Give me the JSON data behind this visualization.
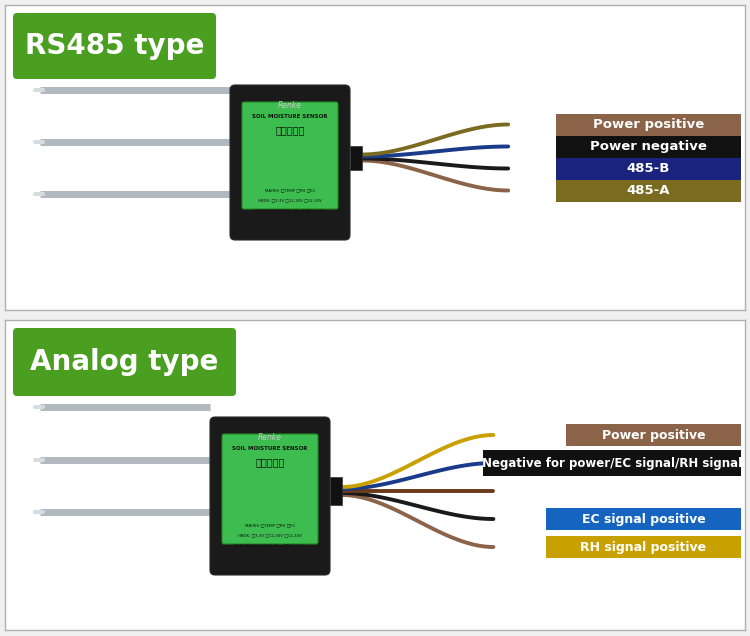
{
  "bg_color": "#f0f0f0",
  "panel_bg": "#ffffff",
  "border_color": "#b0b0b0",
  "green_badge_color": "#4a9e20",
  "section1_title": "RS485 type",
  "section2_title": "Analog type",
  "rs485_labels": [
    {
      "text": "Power positive",
      "bg": "#8B6348",
      "fg": "#ffffff"
    },
    {
      "text": "Power negative",
      "bg": "#111111",
      "fg": "#ffffff"
    },
    {
      "text": "485-B",
      "bg": "#1a237e",
      "fg": "#ffffff"
    },
    {
      "text": "485-A",
      "bg": "#7a6b20",
      "fg": "#ffffff"
    }
  ],
  "analog_labels": [
    {
      "text": "Power positive",
      "bg": "#8B6348",
      "fg": "#ffffff"
    },
    {
      "text": "Negative for power/EC signal/RH signal",
      "bg": "#111111",
      "fg": "#ffffff"
    },
    {
      "text": "EC signal positive",
      "bg": "#1565c0",
      "fg": "#ffffff"
    },
    {
      "text": "RH signal positive",
      "bg": "#c8a000",
      "fg": "#ffffff"
    }
  ],
  "wire_colors_rs485": [
    "#8B6348",
    "#1a1a1a",
    "#1a3a8a",
    "#7a6b20"
  ],
  "wire_colors_analog": [
    "#8B6348",
    "#1a1a1a",
    "#6b3a1a",
    "#1a3a8a",
    "#c8a000"
  ],
  "sensor_green": "#3dbc50",
  "sensor_black": "#1a1a1a"
}
